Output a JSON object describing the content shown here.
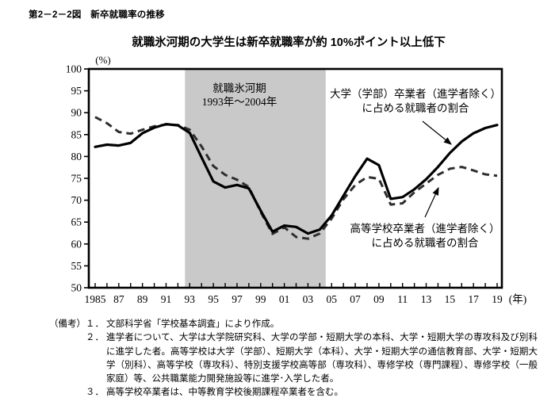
{
  "page": {
    "figure_label": "第2－2－2図　新卒就職率の推移",
    "chart_title": "就職氷河期の大学生は新卒就職率が約 10%ポイント以上低下"
  },
  "chart_data": {
    "type": "line",
    "title": "就職氷河期の大学生は新卒就職率が約 10%ポイント以上低下",
    "y_unit_label": "(%)",
    "x_unit_label": "(年)",
    "ylim": [
      50,
      100
    ],
    "yticks": [
      50,
      55,
      60,
      65,
      70,
      75,
      80,
      85,
      90,
      95,
      100
    ],
    "x": [
      1985,
      1986,
      1987,
      1988,
      1989,
      1990,
      1991,
      1992,
      1993,
      1994,
      1995,
      1996,
      1997,
      1998,
      1999,
      2000,
      2001,
      2002,
      2003,
      2004,
      2005,
      2006,
      2007,
      2008,
      2009,
      2010,
      2011,
      2012,
      2013,
      2014,
      2015,
      2016,
      2017,
      2018,
      2019
    ],
    "xtick_labels": [
      "1985",
      "87",
      "89",
      "91",
      "93",
      "95",
      "97",
      "99",
      "01",
      "03",
      "05",
      "07",
      "09",
      "11",
      "13",
      "15",
      "17",
      "19"
    ],
    "grid": false,
    "legend_position": "annotated-on-chart",
    "series": [
      {
        "name": "大学（学部）卒業者（進学者除く）に占める就職者の割合",
        "style": "solid",
        "color": "#000000",
        "values": [
          82.2,
          82.7,
          82.5,
          83.1,
          85.3,
          86.6,
          87.4,
          87.1,
          85.4,
          79.8,
          74.3,
          72.9,
          73.5,
          72.7,
          67.6,
          62.8,
          64.2,
          63.9,
          62.4,
          63.3,
          66.5,
          71.0,
          75.5,
          79.5,
          78.0,
          70.3,
          70.7,
          72.5,
          74.8,
          77.6,
          80.8,
          83.4,
          85.3,
          86.5,
          87.2
        ]
      },
      {
        "name": "高等学校卒業者（進学者除く）に占める就職者の割合",
        "style": "dashed",
        "color": "#2e2e2e",
        "values": [
          89.0,
          87.6,
          85.6,
          85.2,
          86.1,
          86.9,
          87.3,
          87.2,
          86.1,
          82.3,
          77.8,
          75.8,
          74.7,
          73.0,
          67.3,
          62.3,
          63.8,
          61.6,
          61.2,
          62.4,
          65.8,
          70.2,
          73.5,
          75.3,
          74.9,
          69.0,
          69.3,
          71.8,
          73.8,
          75.8,
          77.2,
          77.6,
          76.8,
          75.9,
          75.6
        ]
      }
    ],
    "shaded_region": {
      "x_start": 1992.6,
      "x_end": 2004.5,
      "color": "#c9c9c9",
      "label_line1": "就職氷河期",
      "label_line2": "1993年〜2004年"
    },
    "annotations": {
      "series1_label_line1": "大学（学部）卒業者（進学者除く）",
      "series1_label_line2": "に占める就職者の割合",
      "series2_label_line1": "高等学校卒業者（進学者除く）",
      "series2_label_line2": "に占める就職者の割合"
    }
  },
  "notes": {
    "label": "（備考）",
    "items": [
      {
        "num": "１．",
        "text": "文部科学省「学校基本調査」により作成。"
      },
      {
        "num": "２．",
        "text": "進学者について、大学は大学院研究科、大学の学部・短期大学の本科、大学・短期大学の専攻科及び別科に進学した者。高等学校は大学（学部）、短期大学（本科）、大学・短期大学の通信教育部、大学・短期大学（別科）、高等学校（専攻科）、特別支援学校高等部（専攻科）、専修学校（専門課程）、専修学校（一般家庭）等、公共職業能力開発施設等に進学･入学した者。"
      },
      {
        "num": "３．",
        "text": "高等学校卒業者は、中等教育学校後期課程卒業者を含む。"
      }
    ]
  }
}
